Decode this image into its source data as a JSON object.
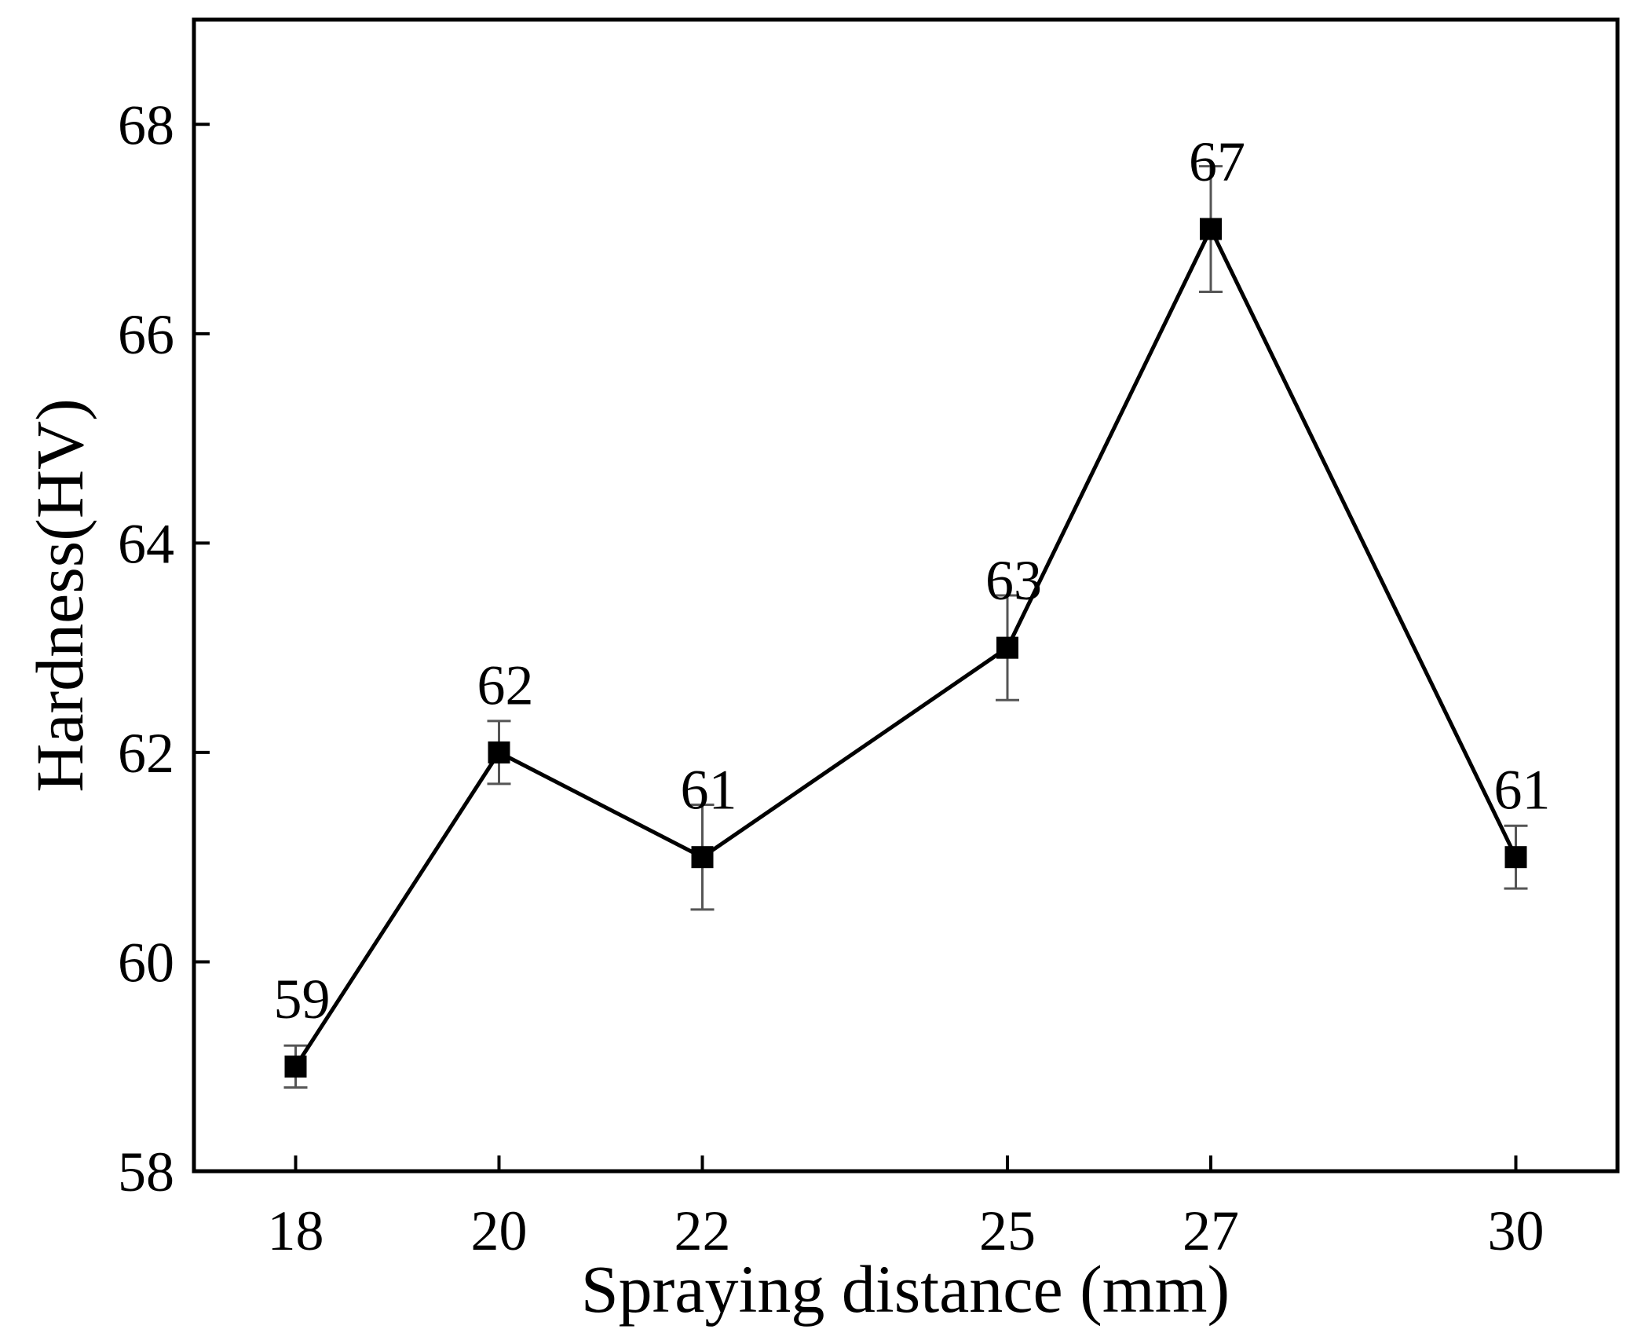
{
  "chart_data": {
    "type": "line",
    "xlabel": "Spraying distance (mm)",
    "ylabel": "Hardness(HV)",
    "x": [
      18,
      20,
      22,
      25,
      27,
      30
    ],
    "series": [
      {
        "values": [
          59,
          62,
          61,
          63,
          67,
          61
        ],
        "error": [
          0.2,
          0.3,
          0.5,
          0.5,
          0.6,
          0.3
        ],
        "data_labels": [
          "59",
          "62",
          "61",
          "63",
          "67",
          "61"
        ],
        "marker": "square",
        "color": "#000000"
      }
    ],
    "xticks": [
      "18",
      "20",
      "22",
      "25",
      "27",
      "30"
    ],
    "yticks": [
      "58",
      "60",
      "62",
      "64",
      "66",
      "68"
    ],
    "xlim": [
      17,
      31
    ],
    "ylim": [
      58,
      69
    ],
    "grid": false,
    "legend": "none"
  }
}
